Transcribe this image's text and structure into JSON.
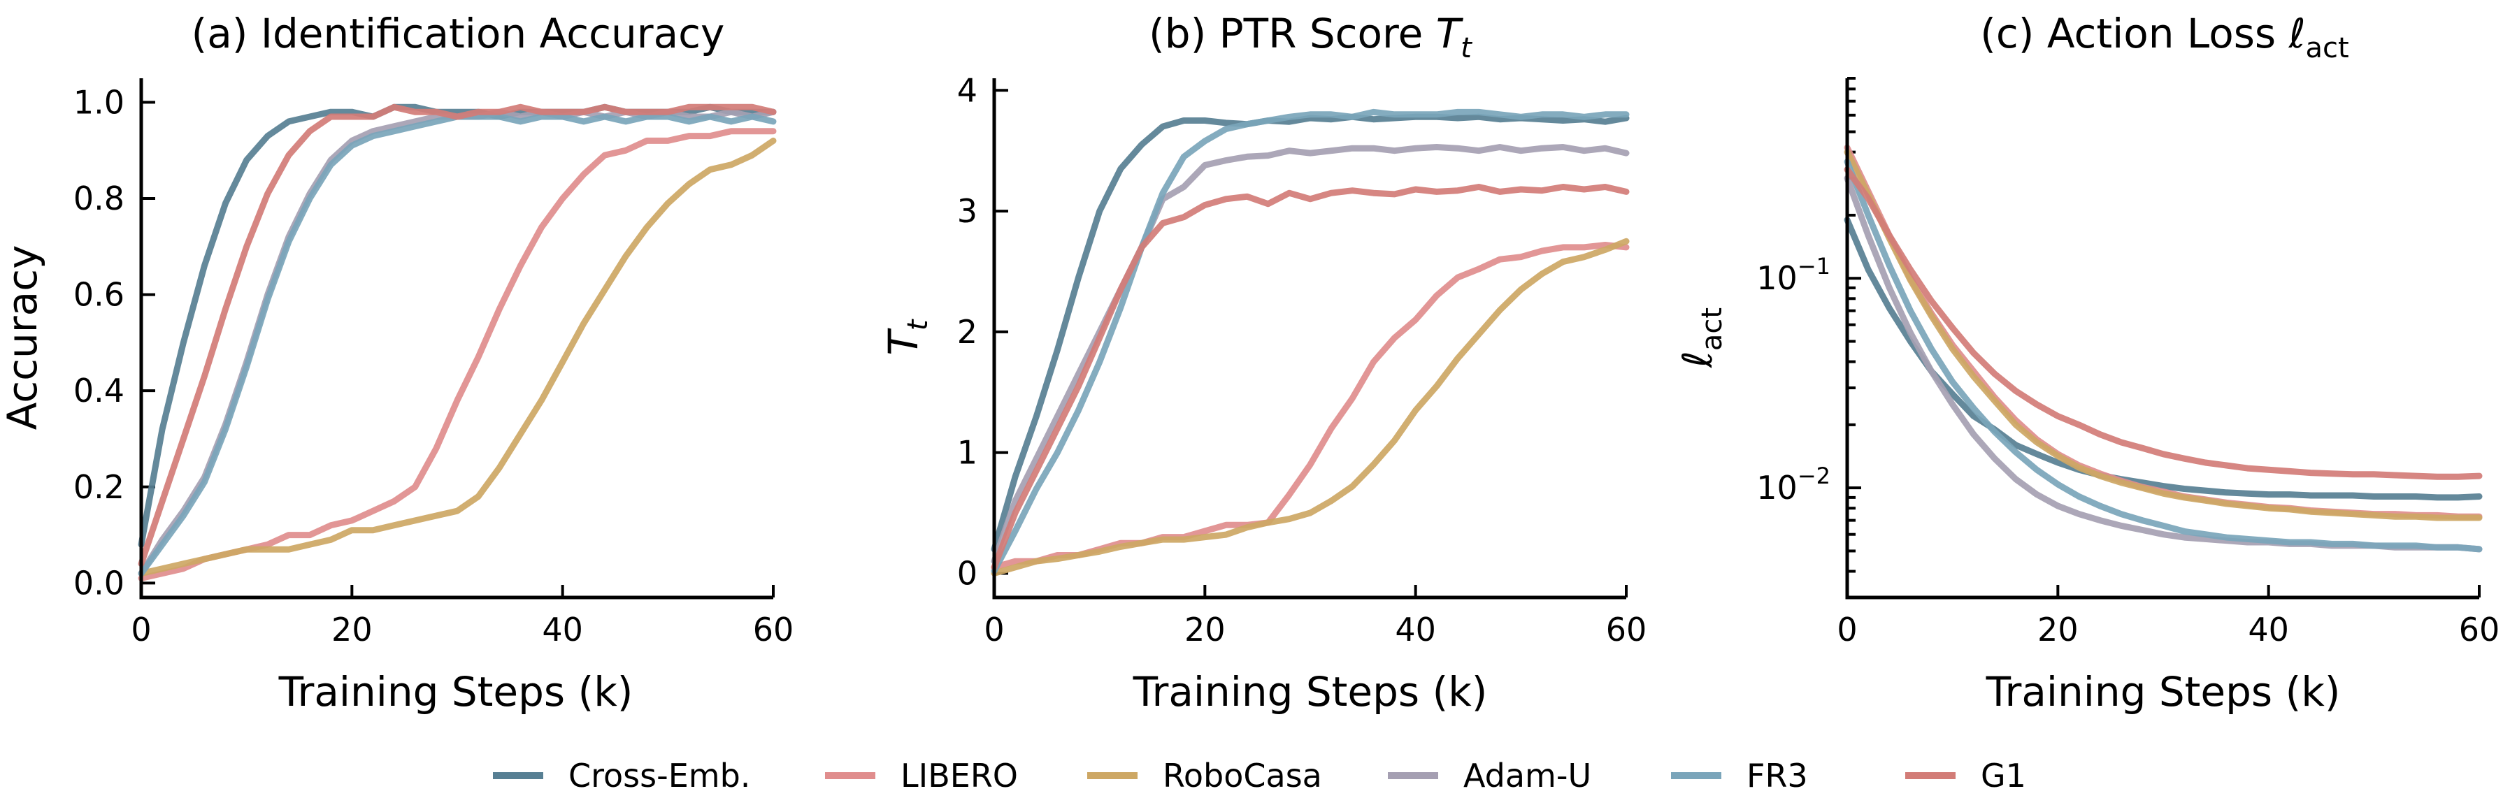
{
  "legend": {
    "placement": "bottom-center",
    "entries": [
      {
        "name": "Cross-Emb.",
        "color": "#577f93"
      },
      {
        "name": "LIBERO",
        "color": "#e08d8d"
      },
      {
        "name": "RoboCasa",
        "color": "#cda764"
      },
      {
        "name": "Adam-U",
        "color": "#a59fb2"
      },
      {
        "name": "FR3",
        "color": "#7aa5ba"
      },
      {
        "name": "G1",
        "color": "#d27c77"
      }
    ]
  },
  "chart_data": [
    {
      "type": "line",
      "title": "(a) Identification Accuracy",
      "xlabel": "Training Steps (k)",
      "ylabel": "Accuracy",
      "xlim": [
        0,
        60
      ],
      "ylim": [
        -0.03,
        1.05
      ],
      "yscale": "linear",
      "xticks": [
        0,
        20,
        40,
        60
      ],
      "xtick_labels": [
        "0",
        "20",
        "40",
        "60"
      ],
      "yticks": [
        0.0,
        0.2,
        0.4,
        0.6,
        0.8,
        1.0
      ],
      "ytick_labels": [
        "0.0",
        "0.2",
        "0.4",
        "0.6",
        "0.8",
        "1.0"
      ],
      "grid": false,
      "x": [
        0,
        2,
        4,
        6,
        8,
        10,
        12,
        14,
        16,
        18,
        20,
        22,
        24,
        26,
        28,
        30,
        32,
        34,
        36,
        38,
        40,
        42,
        44,
        46,
        48,
        50,
        52,
        54,
        56,
        58,
        60
      ],
      "series": [
        {
          "name": "Cross-Emb.",
          "values": [
            0.08,
            0.32,
            0.5,
            0.66,
            0.79,
            0.88,
            0.93,
            0.96,
            0.97,
            0.98,
            0.98,
            0.97,
            0.99,
            0.99,
            0.98,
            0.98,
            0.98,
            0.97,
            0.98,
            0.98,
            0.98,
            0.98,
            0.99,
            0.98,
            0.98,
            0.98,
            0.98,
            0.99,
            0.98,
            0.98,
            0.98
          ]
        },
        {
          "name": "LIBERO",
          "values": [
            0.01,
            0.02,
            0.03,
            0.05,
            0.06,
            0.07,
            0.08,
            0.1,
            0.1,
            0.12,
            0.13,
            0.15,
            0.17,
            0.2,
            0.28,
            0.38,
            0.47,
            0.57,
            0.66,
            0.74,
            0.8,
            0.85,
            0.89,
            0.9,
            0.92,
            0.92,
            0.93,
            0.93,
            0.94,
            0.94,
            0.94
          ]
        },
        {
          "name": "RoboCasa",
          "values": [
            0.02,
            0.03,
            0.04,
            0.05,
            0.06,
            0.07,
            0.07,
            0.07,
            0.08,
            0.09,
            0.11,
            0.11,
            0.12,
            0.13,
            0.14,
            0.15,
            0.18,
            0.24,
            0.31,
            0.38,
            0.46,
            0.54,
            0.61,
            0.68,
            0.74,
            0.79,
            0.83,
            0.86,
            0.87,
            0.89,
            0.92
          ]
        },
        {
          "name": "Adam-U",
          "values": [
            0.02,
            0.09,
            0.15,
            0.22,
            0.33,
            0.46,
            0.6,
            0.72,
            0.81,
            0.88,
            0.92,
            0.94,
            0.95,
            0.96,
            0.97,
            0.97,
            0.97,
            0.98,
            0.97,
            0.98,
            0.97,
            0.98,
            0.97,
            0.98,
            0.97,
            0.98,
            0.97,
            0.97,
            0.98,
            0.97,
            0.98
          ]
        },
        {
          "name": "FR3",
          "values": [
            0.02,
            0.08,
            0.14,
            0.21,
            0.32,
            0.45,
            0.59,
            0.71,
            0.8,
            0.87,
            0.91,
            0.93,
            0.94,
            0.95,
            0.96,
            0.97,
            0.97,
            0.97,
            0.96,
            0.97,
            0.97,
            0.96,
            0.97,
            0.96,
            0.97,
            0.97,
            0.96,
            0.97,
            0.96,
            0.97,
            0.96
          ]
        },
        {
          "name": "G1",
          "values": [
            0.04,
            0.17,
            0.3,
            0.43,
            0.57,
            0.7,
            0.81,
            0.89,
            0.94,
            0.97,
            0.97,
            0.97,
            0.99,
            0.98,
            0.98,
            0.97,
            0.98,
            0.98,
            0.99,
            0.98,
            0.98,
            0.98,
            0.99,
            0.98,
            0.98,
            0.98,
            0.99,
            0.99,
            0.99,
            0.99,
            0.98
          ]
        }
      ]
    },
    {
      "type": "line",
      "title": "(b) PTR Score T_t",
      "title_main": "(b) PTR Score ",
      "title_symbol": "T",
      "title_sub": "t",
      "xlabel": "Training Steps (k)",
      "ylabel": "T",
      "ylabel_sub": "t",
      "xlim": [
        0,
        60
      ],
      "ylim": [
        -0.2,
        4.1
      ],
      "yscale": "linear",
      "xticks": [
        0,
        20,
        40,
        60
      ],
      "xtick_labels": [
        "0",
        "20",
        "40",
        "60"
      ],
      "yticks": [
        0,
        1,
        2,
        3,
        4
      ],
      "ytick_labels": [
        "0",
        "1",
        "2",
        "3",
        "4"
      ],
      "grid": false,
      "x": [
        0,
        2,
        4,
        6,
        8,
        10,
        12,
        14,
        16,
        18,
        20,
        22,
        24,
        26,
        28,
        30,
        32,
        34,
        36,
        38,
        40,
        42,
        44,
        46,
        48,
        50,
        52,
        54,
        56,
        58,
        60
      ],
      "series": [
        {
          "name": "Cross-Emb.",
          "values": [
            0.2,
            0.8,
            1.3,
            1.85,
            2.45,
            3.0,
            3.35,
            3.55,
            3.7,
            3.75,
            3.75,
            3.73,
            3.72,
            3.75,
            3.74,
            3.77,
            3.76,
            3.78,
            3.76,
            3.77,
            3.78,
            3.78,
            3.77,
            3.78,
            3.76,
            3.77,
            3.76,
            3.75,
            3.76,
            3.74,
            3.77
          ]
        },
        {
          "name": "LIBERO",
          "values": [
            0.05,
            0.1,
            0.1,
            0.15,
            0.15,
            0.2,
            0.25,
            0.25,
            0.3,
            0.3,
            0.35,
            0.4,
            0.4,
            0.42,
            0.65,
            0.9,
            1.2,
            1.45,
            1.75,
            1.95,
            2.1,
            2.3,
            2.45,
            2.52,
            2.6,
            2.62,
            2.67,
            2.7,
            2.7,
            2.72,
            2.7
          ]
        },
        {
          "name": "RoboCasa",
          "values": [
            0.0,
            0.05,
            0.1,
            0.12,
            0.15,
            0.18,
            0.22,
            0.25,
            0.28,
            0.28,
            0.3,
            0.32,
            0.38,
            0.42,
            0.45,
            0.5,
            0.6,
            0.72,
            0.9,
            1.1,
            1.35,
            1.55,
            1.78,
            1.98,
            2.18,
            2.35,
            2.48,
            2.58,
            2.62,
            2.68,
            2.75
          ]
        },
        {
          "name": "Adam-U",
          "values": [
            0.1,
            0.6,
            0.95,
            1.3,
            1.65,
            2.0,
            2.35,
            2.7,
            3.1,
            3.2,
            3.38,
            3.42,
            3.45,
            3.46,
            3.5,
            3.48,
            3.5,
            3.52,
            3.52,
            3.5,
            3.52,
            3.53,
            3.52,
            3.5,
            3.53,
            3.5,
            3.52,
            3.53,
            3.5,
            3.52,
            3.48
          ]
        },
        {
          "name": "FR3",
          "values": [
            0.02,
            0.35,
            0.7,
            1.0,
            1.35,
            1.75,
            2.2,
            2.7,
            3.15,
            3.45,
            3.58,
            3.68,
            3.72,
            3.75,
            3.78,
            3.8,
            3.8,
            3.78,
            3.82,
            3.8,
            3.8,
            3.8,
            3.82,
            3.82,
            3.8,
            3.78,
            3.8,
            3.8,
            3.78,
            3.8,
            3.8
          ]
        },
        {
          "name": "G1",
          "values": [
            0.05,
            0.5,
            0.85,
            1.2,
            1.55,
            1.95,
            2.35,
            2.7,
            2.9,
            2.95,
            3.05,
            3.1,
            3.12,
            3.06,
            3.15,
            3.1,
            3.15,
            3.17,
            3.15,
            3.14,
            3.18,
            3.16,
            3.17,
            3.2,
            3.16,
            3.18,
            3.17,
            3.2,
            3.18,
            3.2,
            3.16
          ]
        }
      ]
    },
    {
      "type": "line",
      "title": "(c) Action Loss l_act",
      "title_main": "(c) Action Loss ",
      "title_symbol": "ℓ",
      "title_sub": "act",
      "xlabel": "Training Steps (k)",
      "ylabel": "ℓ",
      "ylabel_sub": "act",
      "xlim": [
        0,
        60
      ],
      "ylim": [
        0.003,
        0.9
      ],
      "yscale": "log",
      "xticks": [
        0,
        20,
        40,
        60
      ],
      "xtick_labels": [
        "0",
        "20",
        "40",
        "60"
      ],
      "yticks": [
        0.01,
        0.1
      ],
      "ytick_labels": [
        {
          "base": "10",
          "exp": "−2"
        },
        {
          "base": "10",
          "exp": "−1"
        }
      ],
      "grid": false,
      "x": [
        0,
        2,
        4,
        6,
        8,
        10,
        12,
        14,
        16,
        18,
        20,
        22,
        24,
        26,
        28,
        30,
        32,
        34,
        36,
        38,
        40,
        42,
        44,
        46,
        48,
        50,
        52,
        54,
        56,
        58,
        60
      ],
      "series": [
        {
          "name": "Cross-Emb.",
          "values": [
            0.19,
            0.11,
            0.072,
            0.05,
            0.036,
            0.028,
            0.022,
            0.019,
            0.016,
            0.0145,
            0.0132,
            0.0122,
            0.0115,
            0.011,
            0.0106,
            0.0102,
            0.0099,
            0.0097,
            0.0095,
            0.0094,
            0.0093,
            0.0093,
            0.0092,
            0.0092,
            0.0092,
            0.0091,
            0.0091,
            0.0091,
            0.009,
            0.009,
            0.0091
          ]
        },
        {
          "name": "LIBERO",
          "values": [
            0.42,
            0.26,
            0.16,
            0.1,
            0.068,
            0.048,
            0.036,
            0.027,
            0.021,
            0.017,
            0.0145,
            0.0128,
            0.0117,
            0.0108,
            0.0101,
            0.0096,
            0.0091,
            0.0088,
            0.0085,
            0.0083,
            0.0081,
            0.008,
            0.0078,
            0.0077,
            0.0076,
            0.0075,
            0.0075,
            0.0074,
            0.0074,
            0.0073,
            0.0073
          ]
        },
        {
          "name": "RoboCasa",
          "values": [
            0.4,
            0.25,
            0.155,
            0.098,
            0.066,
            0.046,
            0.034,
            0.026,
            0.02,
            0.0165,
            0.0142,
            0.0125,
            0.0114,
            0.0106,
            0.01,
            0.0094,
            0.009,
            0.0087,
            0.0084,
            0.0082,
            0.008,
            0.0079,
            0.0077,
            0.0076,
            0.0075,
            0.0074,
            0.0073,
            0.0073,
            0.0072,
            0.0072,
            0.0072
          ]
        },
        {
          "name": "Adam-U",
          "values": [
            0.3,
            0.16,
            0.09,
            0.055,
            0.036,
            0.025,
            0.018,
            0.0138,
            0.011,
            0.0093,
            0.0082,
            0.0075,
            0.007,
            0.0066,
            0.0063,
            0.006,
            0.0058,
            0.0057,
            0.0056,
            0.0055,
            0.0055,
            0.0054,
            0.0054,
            0.0053,
            0.0053,
            0.0053,
            0.0052,
            0.0052,
            0.0052,
            0.0052,
            0.0051
          ]
        },
        {
          "name": "FR3",
          "values": [
            0.36,
            0.2,
            0.115,
            0.07,
            0.046,
            0.032,
            0.024,
            0.0185,
            0.0148,
            0.0122,
            0.0104,
            0.0091,
            0.0082,
            0.0075,
            0.007,
            0.0066,
            0.0062,
            0.006,
            0.0058,
            0.0057,
            0.0056,
            0.0055,
            0.0055,
            0.0054,
            0.0054,
            0.0053,
            0.0053,
            0.0053,
            0.0052,
            0.0052,
            0.0051
          ]
        },
        {
          "name": "G1",
          "values": [
            0.33,
            0.24,
            0.16,
            0.11,
            0.078,
            0.058,
            0.044,
            0.035,
            0.029,
            0.025,
            0.022,
            0.02,
            0.018,
            0.0165,
            0.0155,
            0.0145,
            0.0138,
            0.0132,
            0.0128,
            0.0124,
            0.0122,
            0.012,
            0.0118,
            0.0117,
            0.0116,
            0.0116,
            0.0115,
            0.0114,
            0.0113,
            0.0113,
            0.0114
          ]
        }
      ]
    }
  ]
}
